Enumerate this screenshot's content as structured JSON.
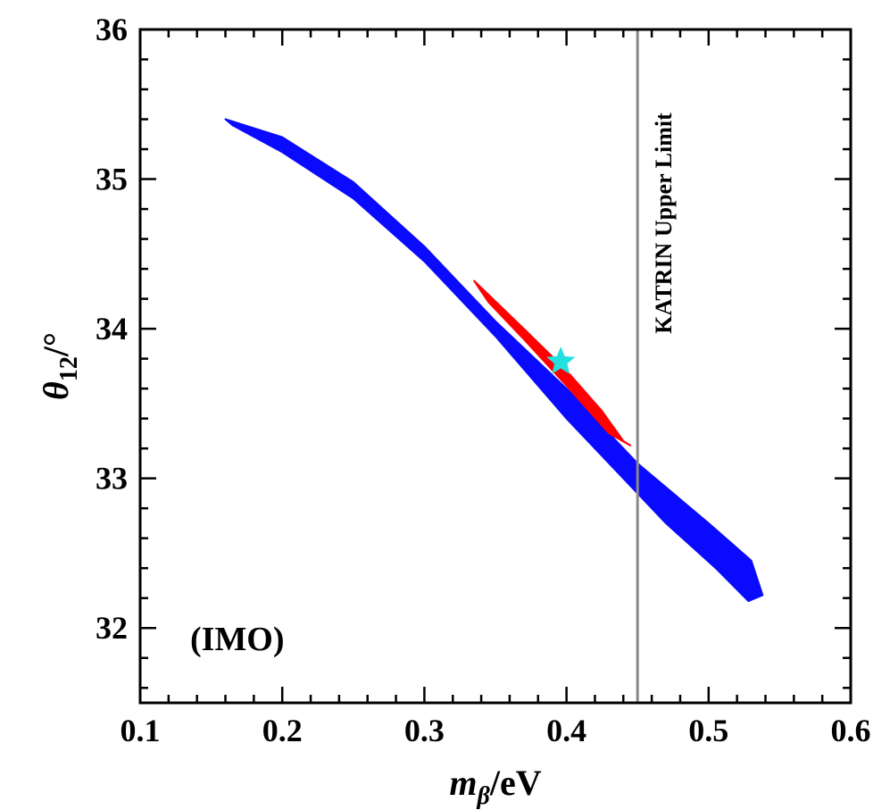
{
  "chart_data": {
    "type": "scatter",
    "title": "",
    "xlim": [
      0.1,
      0.6
    ],
    "ylim": [
      31.5,
      36
    ],
    "x_ticks": [
      "0.1",
      "0.2",
      "0.3",
      "0.4",
      "0.5",
      "0.6"
    ],
    "y_ticks": [
      "32",
      "33",
      "34",
      "35",
      "36"
    ],
    "x_tick_values": [
      0.1,
      0.2,
      0.3,
      0.4,
      0.5,
      0.6
    ],
    "y_tick_values": [
      32,
      33,
      34,
      35,
      36
    ],
    "xlabel": {
      "main": "m",
      "sub": "β",
      "suffix": "/eV"
    },
    "ylabel": {
      "main": "θ",
      "sub": "12",
      "suffix": "/°"
    },
    "panel_label": "(IMO)",
    "grid": false,
    "series": [
      {
        "color": "#0a0aff",
        "region_boundary": [
          [
            0.16,
            35.4
          ],
          [
            0.2,
            35.28
          ],
          [
            0.25,
            34.98
          ],
          [
            0.3,
            34.55
          ],
          [
            0.35,
            34.05
          ],
          [
            0.4,
            33.6
          ],
          [
            0.45,
            33.1
          ],
          [
            0.5,
            32.7
          ],
          [
            0.53,
            32.45
          ],
          [
            0.538,
            32.22
          ],
          [
            0.528,
            32.18
          ],
          [
            0.505,
            32.4
          ],
          [
            0.47,
            32.7
          ],
          [
            0.44,
            33.0
          ],
          [
            0.4,
            33.4
          ],
          [
            0.35,
            33.95
          ],
          [
            0.3,
            34.45
          ],
          [
            0.25,
            34.87
          ],
          [
            0.2,
            35.18
          ],
          [
            0.165,
            35.36
          ]
        ]
      },
      {
        "color": "#ff0000",
        "region_boundary": [
          [
            0.335,
            34.32
          ],
          [
            0.37,
            34.0
          ],
          [
            0.4,
            33.72
          ],
          [
            0.425,
            33.45
          ],
          [
            0.44,
            33.25
          ],
          [
            0.445,
            33.22
          ],
          [
            0.43,
            33.3
          ],
          [
            0.4,
            33.62
          ],
          [
            0.37,
            33.93
          ],
          [
            0.345,
            34.18
          ]
        ]
      }
    ],
    "best_fit": {
      "x": 0.396,
      "y": 33.78,
      "marker": "star",
      "color": "#22e0e0"
    },
    "reference_lines": [
      {
        "orientation": "vertical",
        "x": 0.45,
        "color": "#888888",
        "label": "KATRIN Upper Limit"
      }
    ]
  }
}
